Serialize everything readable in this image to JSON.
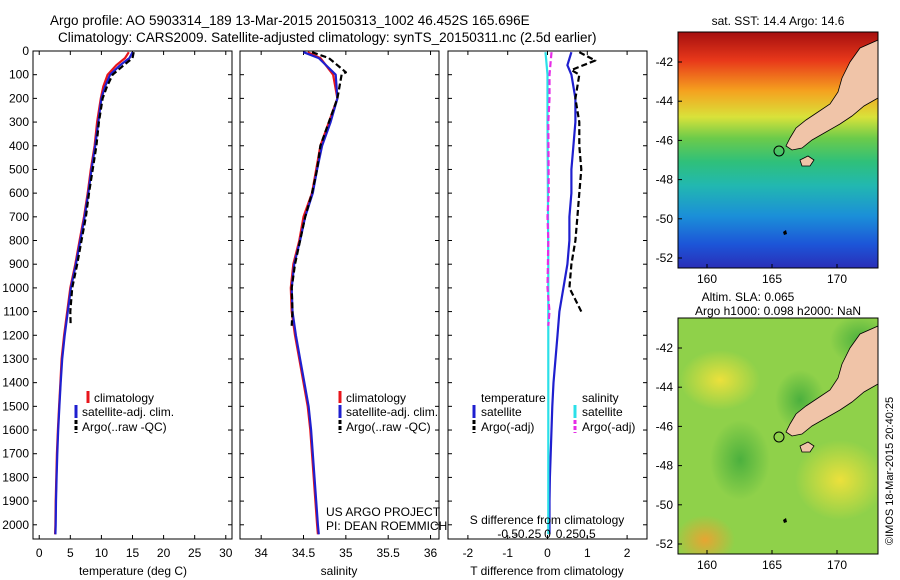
{
  "title_line1": "Argo profile: AO 5903314_189 13-Mar-2015 20150313_1002 46.452S 165.696E",
  "title_line2": "Climatology: CARS2009. Satellite-adjusted climatology: synTS_20150311.nc (2.5d earlier)",
  "depth_ticks": [
    "0",
    "100",
    "200",
    "300",
    "400",
    "500",
    "600",
    "700",
    "800",
    "900",
    "1000",
    "1100",
    "1200",
    "1300",
    "1400",
    "1500",
    "1600",
    "1700",
    "1800",
    "1900",
    "2000"
  ],
  "colors": {
    "climatology": "#e8151b",
    "satellite": "#1f1fcf",
    "argo": "#000000",
    "sal_satellite": "#2be0e8",
    "sal_argo": "#e62ce6"
  },
  "legend_main": {
    "climatology": "climatology",
    "satellite": "satellite-adj. clim.",
    "argo": "Argo(..raw -QC)"
  },
  "legend_diff": {
    "temperature": "temperature",
    "salinity": "salinity",
    "satellite": "satellite",
    "argo": "Argo(-adj)"
  },
  "credit_line1": "US ARGO PROJECT",
  "credit_line2": "PI: DEAN ROEMMICH",
  "diff_top_label": "S difference from climatology",
  "diff_top_ticks": [
    "-0.5",
    "-0.25",
    "0",
    "0.25",
    "0.5"
  ],
  "map_top_title": "sat. SST: 14.4 Argo: 14.6",
  "map_bottom_title1": "Altim. SLA: 0.065",
  "map_bottom_title2": "Argo h1000: 0.098 h2000: NaN",
  "map_lat_ticks": [
    "-42",
    "-44",
    "-46",
    "-48",
    "-50",
    "-52"
  ],
  "map_lon_ticks": [
    "160",
    "165",
    "170"
  ],
  "watermark": "©IMOS 18-Mar-2015 20:40:25",
  "chart_data": [
    {
      "type": "line",
      "name": "temperature",
      "xlabel": "temperature (deg C)",
      "xlim": [
        -1,
        31
      ],
      "ylim": [
        2060,
        0
      ],
      "xticks": [
        "0",
        "5",
        "10",
        "15",
        "20",
        "25",
        "30"
      ],
      "series": [
        {
          "name": "climatology",
          "color": "#e8151b",
          "points": [
            [
              14.4,
              5
            ],
            [
              13.8,
              30
            ],
            [
              12.4,
              60
            ],
            [
              11.0,
              100
            ],
            [
              10.3,
              150
            ],
            [
              9.9,
              200
            ],
            [
              9.3,
              300
            ],
            [
              8.9,
              400
            ],
            [
              8.3,
              500
            ],
            [
              7.8,
              600
            ],
            [
              7.2,
              700
            ],
            [
              6.5,
              800
            ],
            [
              5.8,
              900
            ],
            [
              5.0,
              1000
            ],
            [
              4.5,
              1100
            ],
            [
              4.0,
              1200
            ],
            [
              3.6,
              1300
            ],
            [
              3.4,
              1400
            ],
            [
              3.2,
              1500
            ],
            [
              3.0,
              1600
            ],
            [
              2.85,
              1700
            ],
            [
              2.75,
              1800
            ],
            [
              2.65,
              1900
            ],
            [
              2.6,
              2000
            ],
            [
              2.55,
              2040
            ]
          ]
        },
        {
          "name": "satellite-adj. clim.",
          "color": "#1f1fcf",
          "points": [
            [
              15.0,
              5
            ],
            [
              14.5,
              30
            ],
            [
              13.0,
              60
            ],
            [
              11.4,
              100
            ],
            [
              10.6,
              150
            ],
            [
              10.0,
              200
            ],
            [
              9.5,
              300
            ],
            [
              9.0,
              400
            ],
            [
              8.4,
              500
            ],
            [
              7.9,
              600
            ],
            [
              7.3,
              700
            ],
            [
              6.6,
              800
            ],
            [
              5.9,
              900
            ],
            [
              5.1,
              1000
            ],
            [
              4.6,
              1100
            ],
            [
              4.1,
              1200
            ],
            [
              3.7,
              1300
            ],
            [
              3.45,
              1400
            ],
            [
              3.25,
              1500
            ],
            [
              3.05,
              1600
            ],
            [
              2.9,
              1700
            ],
            [
              2.8,
              1800
            ],
            [
              2.7,
              1900
            ],
            [
              2.65,
              2000
            ],
            [
              2.6,
              2040
            ]
          ]
        },
        {
          "name": "Argo(..raw -QC)",
          "color": "#000000",
          "dashed": true,
          "points": [
            [
              15.2,
              5
            ],
            [
              15.0,
              30
            ],
            [
              13.6,
              60
            ],
            [
              11.8,
              100
            ],
            [
              10.9,
              150
            ],
            [
              10.2,
              200
            ],
            [
              9.6,
              300
            ],
            [
              9.2,
              400
            ],
            [
              8.6,
              500
            ],
            [
              8.0,
              600
            ],
            [
              7.5,
              700
            ],
            [
              6.8,
              800
            ],
            [
              6.1,
              900
            ],
            [
              5.3,
              1000
            ],
            [
              5.0,
              1100
            ],
            [
              5.05,
              1150
            ]
          ]
        }
      ]
    },
    {
      "type": "line",
      "name": "salinity",
      "xlabel": "salinity",
      "xlim": [
        33.75,
        36.1
      ],
      "ylim": [
        2060,
        0
      ],
      "xticks": [
        "34",
        "34.5",
        "35",
        "35.5",
        "36"
      ],
      "series": [
        {
          "name": "climatology",
          "color": "#e8151b",
          "points": [
            [
              34.55,
              5
            ],
            [
              34.7,
              30
            ],
            [
              34.85,
              100
            ],
            [
              34.9,
              200
            ],
            [
              34.8,
              300
            ],
            [
              34.7,
              400
            ],
            [
              34.65,
              500
            ],
            [
              34.6,
              600
            ],
            [
              34.5,
              700
            ],
            [
              34.45,
              800
            ],
            [
              34.38,
              900
            ],
            [
              34.35,
              1000
            ],
            [
              34.36,
              1100
            ],
            [
              34.4,
              1200
            ],
            [
              34.45,
              1300
            ],
            [
              34.5,
              1400
            ],
            [
              34.55,
              1500
            ],
            [
              34.58,
              1600
            ],
            [
              34.6,
              1700
            ],
            [
              34.62,
              1800
            ],
            [
              34.64,
              1900
            ],
            [
              34.66,
              2000
            ],
            [
              34.67,
              2040
            ]
          ]
        },
        {
          "name": "satellite-adj. clim.",
          "color": "#1f1fcf",
          "points": [
            [
              34.5,
              5
            ],
            [
              34.68,
              30
            ],
            [
              34.88,
              100
            ],
            [
              34.9,
              200
            ],
            [
              34.82,
              300
            ],
            [
              34.72,
              400
            ],
            [
              34.66,
              500
            ],
            [
              34.61,
              600
            ],
            [
              34.52,
              700
            ],
            [
              34.46,
              800
            ],
            [
              34.39,
              900
            ],
            [
              34.36,
              1000
            ],
            [
              34.37,
              1100
            ],
            [
              34.41,
              1200
            ],
            [
              34.46,
              1300
            ],
            [
              34.51,
              1400
            ],
            [
              34.56,
              1500
            ],
            [
              34.59,
              1600
            ],
            [
              34.61,
              1700
            ],
            [
              34.63,
              1800
            ],
            [
              34.65,
              1900
            ],
            [
              34.67,
              2000
            ],
            [
              34.68,
              2040
            ]
          ]
        },
        {
          "name": "Argo(..raw -QC)",
          "color": "#000000",
          "dashed": true,
          "points": [
            [
              34.6,
              5
            ],
            [
              34.8,
              30
            ],
            [
              35.0,
              90
            ],
            [
              34.95,
              100
            ],
            [
              34.9,
              200
            ],
            [
              34.8,
              300
            ],
            [
              34.7,
              400
            ],
            [
              34.66,
              500
            ],
            [
              34.6,
              600
            ],
            [
              34.52,
              700
            ],
            [
              34.46,
              800
            ],
            [
              34.4,
              900
            ],
            [
              34.36,
              1000
            ],
            [
              34.37,
              1100
            ],
            [
              34.36,
              1160
            ]
          ]
        }
      ]
    },
    {
      "type": "line",
      "name": "difference from climatology",
      "xlabel": "T difference from climatology",
      "xlim": [
        -2.5,
        2.5
      ],
      "ylim": [
        2060,
        0
      ],
      "xticks": [
        "-2",
        "-1",
        "0",
        "1",
        "2"
      ],
      "series": [
        {
          "name": "satellite (temperature)",
          "color": "#1f1fcf",
          "points": [
            [
              0.6,
              5
            ],
            [
              0.5,
              60
            ],
            [
              0.6,
              100
            ],
            [
              0.7,
              200
            ],
            [
              0.7,
              300
            ],
            [
              0.65,
              400
            ],
            [
              0.6,
              500
            ],
            [
              0.6,
              600
            ],
            [
              0.55,
              700
            ],
            [
              0.55,
              800
            ],
            [
              0.5,
              900
            ],
            [
              0.4,
              1000
            ],
            [
              0.3,
              1100
            ],
            [
              0.25,
              1200
            ],
            [
              0.2,
              1300
            ],
            [
              0.15,
              1400
            ],
            [
              0.12,
              1500
            ],
            [
              0.1,
              1600
            ],
            [
              0.08,
              1700
            ],
            [
              0.06,
              1800
            ],
            [
              0.05,
              1900
            ],
            [
              0.05,
              2040
            ]
          ]
        },
        {
          "name": "Argo(-adj) (temperature)",
          "color": "#000000",
          "dashed": true,
          "points": [
            [
              0.8,
              5
            ],
            [
              1.2,
              40
            ],
            [
              0.6,
              80
            ],
            [
              0.8,
              100
            ],
            [
              0.7,
              200
            ],
            [
              0.8,
              300
            ],
            [
              0.8,
              400
            ],
            [
              0.85,
              500
            ],
            [
              0.8,
              600
            ],
            [
              0.75,
              700
            ],
            [
              0.7,
              800
            ],
            [
              0.6,
              900
            ],
            [
              0.55,
              1000
            ],
            [
              0.7,
              1050
            ],
            [
              0.85,
              1100
            ]
          ]
        },
        {
          "name": "satellite (salinity)",
          "color": "#2be0e8",
          "points": [
            [
              -0.05,
              5
            ],
            [
              0,
              100
            ],
            [
              0,
              300
            ],
            [
              0.01,
              600
            ],
            [
              0.02,
              900
            ],
            [
              0.02,
              1200
            ],
            [
              0.02,
              1500
            ],
            [
              0.02,
              1800
            ],
            [
              0.02,
              2040
            ]
          ]
        },
        {
          "name": "Argo(-adj) (salinity)",
          "color": "#e62ce6",
          "dashed": true,
          "points": [
            [
              0.1,
              5
            ],
            [
              0.05,
              100
            ],
            [
              0.05,
              200
            ],
            [
              0.02,
              300
            ],
            [
              0.03,
              600
            ],
            [
              0.0,
              700
            ],
            [
              0.02,
              800
            ],
            [
              0.0,
              1000
            ],
            [
              0.05,
              1100
            ],
            [
              0.02,
              1160
            ]
          ]
        }
      ]
    }
  ]
}
